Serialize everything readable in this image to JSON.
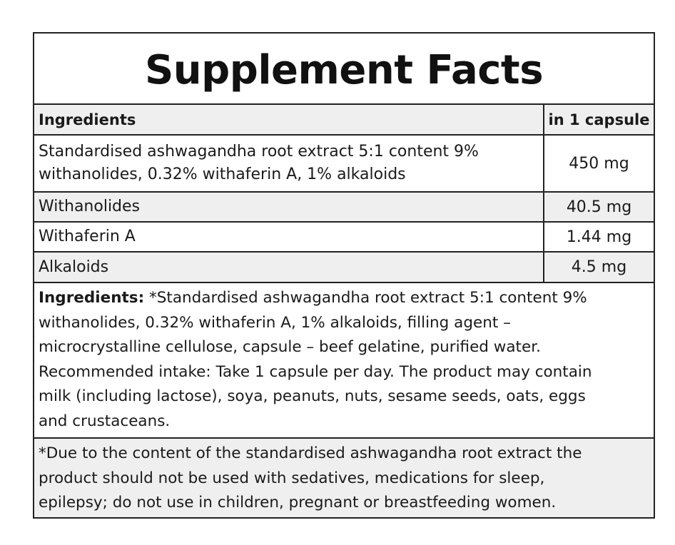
{
  "title": "Supplement Facts",
  "header": {
    "ingredients_label": "Ingredients",
    "amount_label": "in 1 capsule"
  },
  "rows": [
    {
      "name_line1": "Standardised ashwagandha root extract 5:1 content 9%",
      "name_line2": "withanolides, 0.32% withaferin A, 1% alkaloids",
      "amount": "450 mg"
    },
    {
      "name": "Withanolides",
      "amount": "40.5 mg"
    },
    {
      "name": "Withaferin A",
      "amount": "1.44 mg"
    },
    {
      "name": "Alkaloids",
      "amount": "4.5 mg"
    }
  ],
  "ingredients_text": {
    "label": "Ingredients:",
    "lines": [
      " *Standardised ashwagandha root extract 5:1 content 9%",
      "withanolides, 0.32% withaferin A, 1% alkaloids, filling agent –",
      "microcrystalline cellulose, capsule – beef gelatine, purified water.",
      "Recommended intake: Take 1 capsule per day. The product may contain",
      "milk (including lactose), soya, peanuts, nuts, sesame seeds, oats, eggs",
      "and crustaceans."
    ]
  },
  "warning": {
    "lines": [
      "*Due to the content of the standardised ashwagandha root extract the",
      "product should not be used with sedatives, medications for sleep,",
      "epilepsy; do not use in children, pregnant or breastfeeding women."
    ]
  }
}
